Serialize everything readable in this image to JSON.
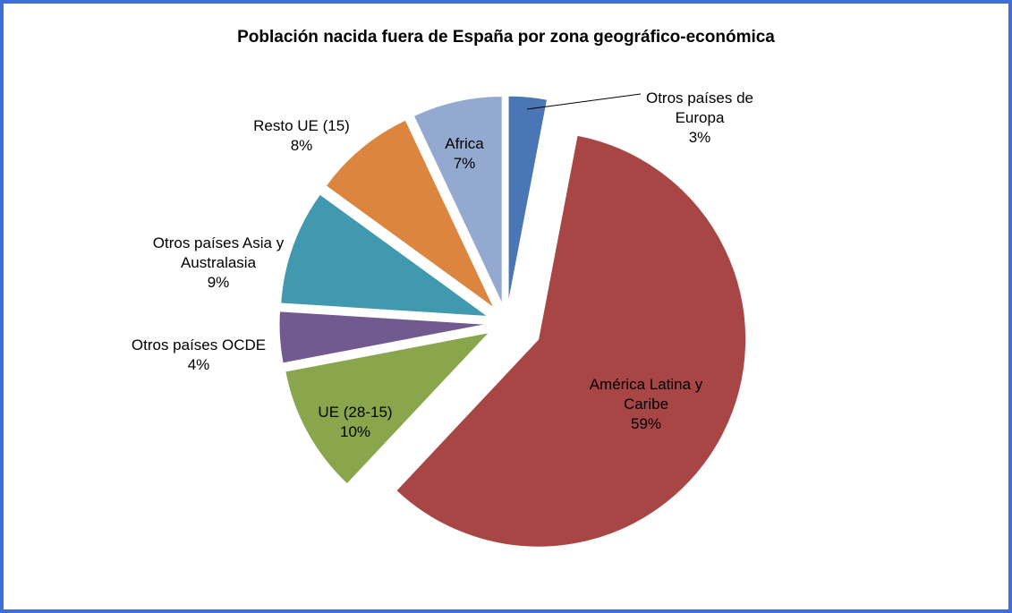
{
  "chart_data": {
    "type": "pie",
    "title": "Población nacida fuera de España por zona geográfico-económica",
    "categories": [
      "Otros países de Europa",
      "América Latina y Caribe",
      "UE (28-15)",
      "Otros países OCDE",
      "Otros países Asia y Australasia",
      "Resto UE (15)",
      "Africa"
    ],
    "values": [
      3,
      59,
      10,
      4,
      9,
      8,
      7
    ],
    "value_labels": [
      "3%",
      "59%",
      "10%",
      "4%",
      "9%",
      "8%",
      "7%"
    ],
    "colors": [
      "#4a76b5",
      "#a84646",
      "#8aa64c",
      "#705a8f",
      "#4199b0",
      "#dc853e",
      "#93a9d0"
    ]
  }
}
